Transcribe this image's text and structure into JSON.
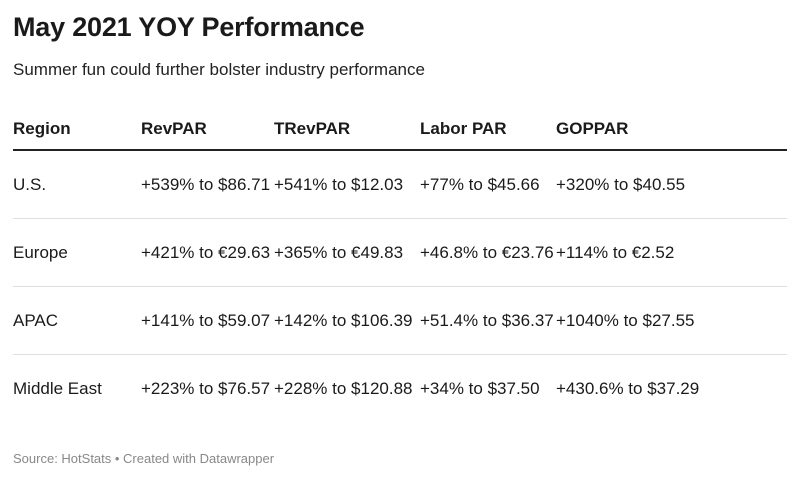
{
  "title": "May 2021 YOY Performance",
  "subtitle": "Summer fun could further bolster industry performance",
  "footer": "Source: HotStats • Created with Datawrapper",
  "chart_data": {
    "type": "table",
    "columns": [
      "Region",
      "RevPAR",
      "TRevPAR",
      "Labor PAR",
      "GOPPAR"
    ],
    "rows": [
      [
        "U.S.",
        "+539% to $86.71",
        "+541% to $12.03",
        "+77% to $45.66",
        "+320% to $40.55"
      ],
      [
        "Europe",
        "+421% to €29.63",
        "+365% to €49.83",
        "+46.8% to €23.76",
        "+114% to €2.52"
      ],
      [
        "APAC",
        "+141% to $59.07",
        "+142% to $106.39",
        "+51.4% to $36.37",
        "+1040% to $27.55"
      ],
      [
        "Middle East",
        "+223% to $76.57",
        "+228% to $120.88",
        "+34% to $37.50",
        "+430.6% to $37.29"
      ]
    ]
  }
}
